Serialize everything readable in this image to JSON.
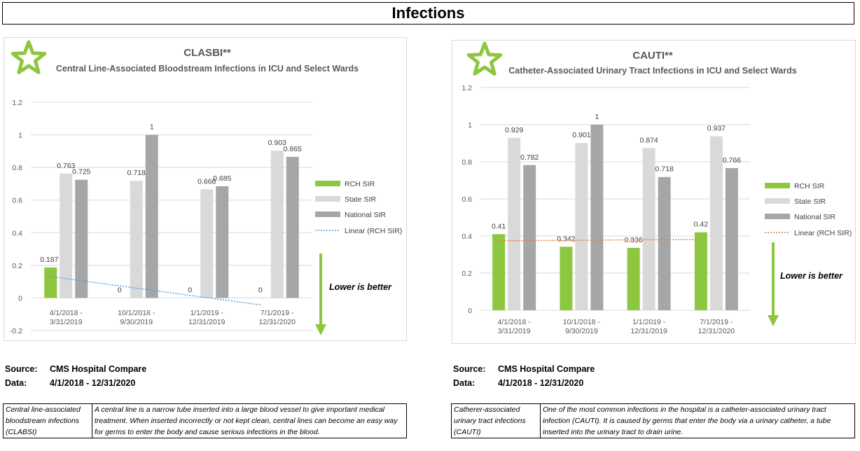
{
  "page": {
    "title": "Infections"
  },
  "panels": [
    {
      "source_label": "Source:",
      "source_value": "CMS Hospital Compare",
      "data_label": "Data:",
      "data_value": "4/1/2018 - 12/31/2020",
      "term": "Central line-associated bloodstream infections (CLABSI)",
      "definition": "A central line is a narrow tube inserted into a large blood vessel to give important medical treatment. When inserted incorrectly or not kept clean, central lines can become an easy way for germs to enter the body and cause serious infections in the blood.",
      "star_icon": "star-outline-icon",
      "arrow_icon": "down-arrow-icon",
      "lower_note": "Lower is better"
    },
    {
      "source_label": "Source:",
      "source_value": "CMS Hospital Compare",
      "data_label": "Data:",
      "data_value": "4/1/2018 - 12/31/2020",
      "term": "Catherer-associated urinary tract infections (CAUTI)",
      "definition": "One of the most common infections in the hospital is a catheter-associated urinary tract infection (CAUTI). It is caused by germs that enter the body via a urinary catheter, a tube inserted into the urinary tract to drain urine.",
      "star_icon": "star-outline-icon",
      "arrow_icon": "down-arrow-icon",
      "lower_note": "Lower is better"
    }
  ],
  "chart_data": [
    {
      "type": "bar",
      "title": "CLASBI**",
      "subtitle": "Central Line-Associated Bloodstream Infections in ICU and Select Wards",
      "categories": [
        [
          "4/1/2018 -",
          "3/31/2019"
        ],
        [
          "10/1/2018 -",
          "9/30/2019"
        ],
        [
          "1/1/2019 -",
          "12/31/2019"
        ],
        [
          "7/1/2019 -",
          "12/31/2020"
        ]
      ],
      "series": [
        {
          "name": "RCH SIR",
          "values": [
            0.187,
            0,
            0,
            0
          ],
          "color": "#8dc63f"
        },
        {
          "name": "State SIR",
          "values": [
            0.763,
            0.718,
            0.666,
            0.903
          ],
          "color": "#d9d9d9"
        },
        {
          "name": "National SIR",
          "values": [
            0.725,
            1,
            0.685,
            0.865
          ],
          "color": "#a6a6a6"
        }
      ],
      "trendline": {
        "name": "Linear (RCH SIR)",
        "color": "#5b9bd5",
        "start": 0.1309,
        "end": -0.0436
      },
      "ylim": [
        -0.2,
        1.2
      ],
      "yticks": [
        -0.2,
        0,
        0.2,
        0.4,
        0.6,
        0.8,
        1,
        1.2
      ],
      "gridlines": true,
      "legend_position": "right"
    },
    {
      "type": "bar",
      "title": "CAUTI**",
      "subtitle": "Catheter-Associated Urinary Tract Infections in ICU and Select Wards",
      "categories": [
        [
          "4/1/2018 -",
          "3/31/2019"
        ],
        [
          "10/1/2018 -",
          "9/30/2019"
        ],
        [
          "1/1/2019 -",
          "12/31/2019"
        ],
        [
          "7/1/2019 -",
          "12/31/2020"
        ]
      ],
      "series": [
        {
          "name": "RCH SIR",
          "values": [
            0.41,
            0.342,
            0.336,
            0.42
          ],
          "color": "#8dc63f"
        },
        {
          "name": "State SIR",
          "values": [
            0.929,
            0.901,
            0.874,
            0.937
          ],
          "color": "#d9d9d9"
        },
        {
          "name": "National SIR",
          "values": [
            0.782,
            1,
            0.718,
            0.766
          ],
          "color": "#a6a6a6"
        }
      ],
      "trendline": {
        "name": "Linear (RCH SIR)",
        "color": "#ed7d31",
        "start": 0.3743,
        "end": 0.3815
      },
      "ylim": [
        0,
        1.2
      ],
      "yticks": [
        0,
        0.2,
        0.4,
        0.6,
        0.8,
        1,
        1.2
      ],
      "gridlines": true,
      "legend_position": "right"
    }
  ]
}
